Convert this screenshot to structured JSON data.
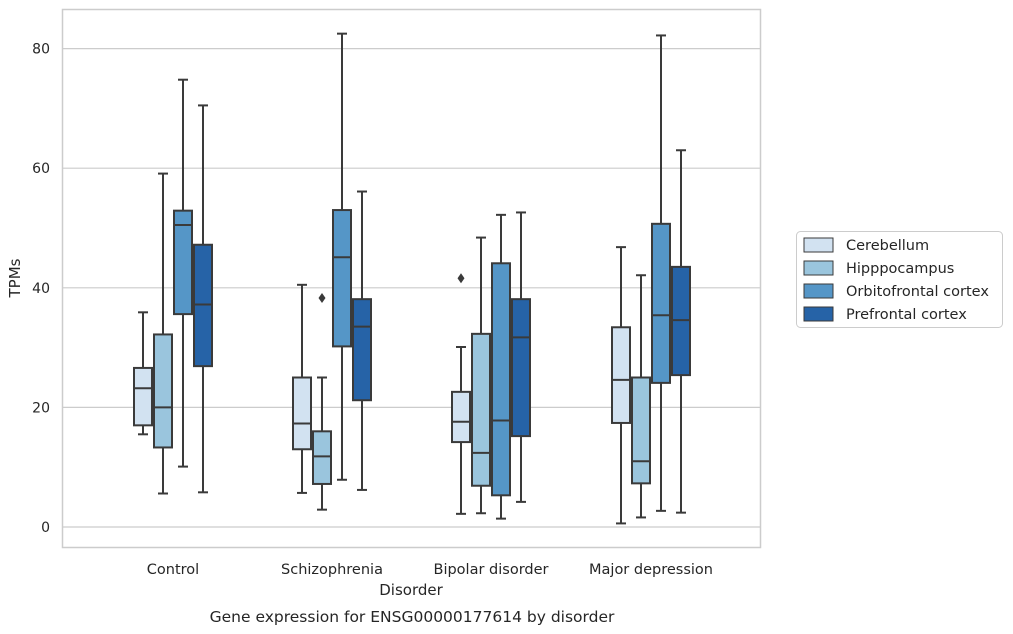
{
  "chart_data": {
    "type": "boxplot",
    "title": "Gene expression for ENSG00000177614 by disorder",
    "xlabel": "Disorder",
    "ylabel": "TPMs",
    "ylim": [
      -3.3,
      86.5
    ],
    "yticks": [
      0,
      20,
      40,
      60,
      80
    ],
    "grid": true,
    "legend_position": "right",
    "categories": [
      "Control",
      "Schizophrenia",
      "Bipolar disorder",
      "Major depression"
    ],
    "colors": [
      "#d2e2f1",
      "#9ac5dd",
      "#5596c7",
      "#2663a7"
    ],
    "series": [
      {
        "name": "Cerebellum",
        "boxes": [
          {
            "whislo": 15.5,
            "q1": 17.0,
            "med": 23.2,
            "q3": 26.6,
            "whishi": 35.9,
            "fliers": []
          },
          {
            "whislo": 5.7,
            "q1": 13.0,
            "med": 17.3,
            "q3": 25.0,
            "whishi": 40.5,
            "fliers": []
          },
          {
            "whislo": 2.2,
            "q1": 14.2,
            "med": 17.6,
            "q3": 22.6,
            "whishi": 30.1,
            "fliers": [
              41.6
            ]
          },
          {
            "whislo": 0.6,
            "q1": 17.4,
            "med": 24.6,
            "q3": 33.4,
            "whishi": 46.8,
            "fliers": []
          }
        ]
      },
      {
        "name": "Hipppocampus",
        "boxes": [
          {
            "whislo": 5.6,
            "q1": 13.3,
            "med": 20.0,
            "q3": 32.2,
            "whishi": 59.1,
            "fliers": []
          },
          {
            "whislo": 2.9,
            "q1": 7.2,
            "med": 11.8,
            "q3": 16.0,
            "whishi": 25.0,
            "fliers": [
              38.3
            ]
          },
          {
            "whislo": 2.3,
            "q1": 6.9,
            "med": 12.4,
            "q3": 32.3,
            "whishi": 48.4,
            "fliers": []
          },
          {
            "whislo": 1.6,
            "q1": 7.3,
            "med": 11.0,
            "q3": 25.0,
            "whishi": 42.1,
            "fliers": []
          }
        ]
      },
      {
        "name": "Orbitofrontal cortex",
        "boxes": [
          {
            "whislo": 10.1,
            "q1": 35.6,
            "med": 50.5,
            "q3": 52.9,
            "whishi": 74.8,
            "fliers": []
          },
          {
            "whislo": 7.9,
            "q1": 30.2,
            "med": 45.1,
            "q3": 53.0,
            "whishi": 82.5,
            "fliers": []
          },
          {
            "whislo": 1.4,
            "q1": 5.3,
            "med": 17.8,
            "q3": 44.1,
            "whishi": 52.2,
            "fliers": []
          },
          {
            "whislo": 2.7,
            "q1": 24.1,
            "med": 35.4,
            "q3": 50.7,
            "whishi": 82.2,
            "fliers": []
          }
        ]
      },
      {
        "name": "Prefrontal cortex",
        "boxes": [
          {
            "whislo": 5.8,
            "q1": 26.9,
            "med": 37.2,
            "q3": 47.2,
            "whishi": 70.5,
            "fliers": []
          },
          {
            "whislo": 6.2,
            "q1": 21.2,
            "med": 33.5,
            "q3": 38.1,
            "whishi": 56.1,
            "fliers": []
          },
          {
            "whislo": 4.2,
            "q1": 15.2,
            "med": 31.7,
            "q3": 38.1,
            "whishi": 52.6,
            "fliers": []
          },
          {
            "whislo": 2.4,
            "q1": 25.4,
            "med": 34.6,
            "q3": 43.5,
            "whishi": 63.0,
            "fliers": []
          }
        ]
      }
    ]
  }
}
